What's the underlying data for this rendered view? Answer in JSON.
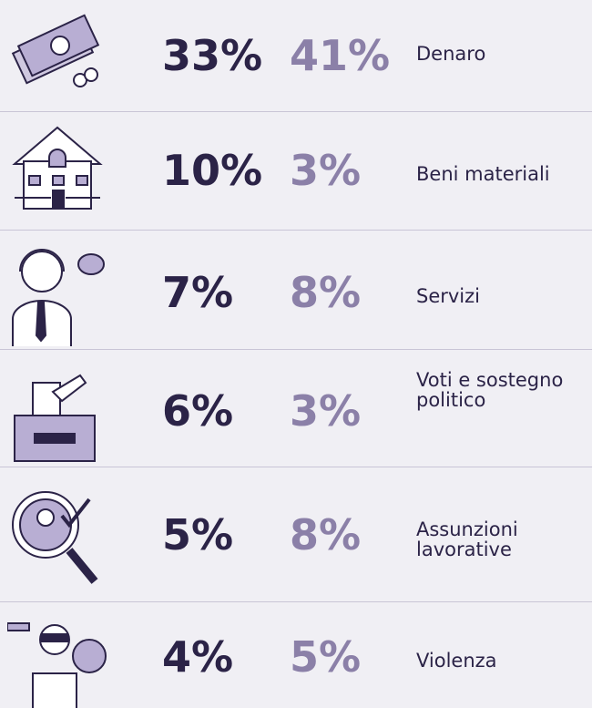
{
  "rows": [
    {
      "share_a": "33%",
      "share_b": "41%",
      "label": "Denaro"
    },
    {
      "share_a": "10%",
      "share_b": "3%",
      "label": "Beni materiali"
    },
    {
      "share_a": "7%",
      "share_b": "8%",
      "label": "Servizi"
    },
    {
      "share_a": "6%",
      "share_b": "3%",
      "label": "Voti e sostegno politico"
    },
    {
      "share_a": "5%",
      "share_b": "8%",
      "label": "Assunzioni lavorative"
    },
    {
      "share_a": "4%",
      "share_b": "5%",
      "label": "Violenza"
    }
  ]
}
